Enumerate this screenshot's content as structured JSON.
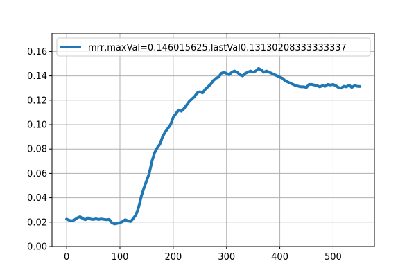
{
  "chart_data": {
    "type": "line",
    "title": "",
    "xlabel": "",
    "ylabel": "",
    "xlim": [
      -27.5,
      577.5
    ],
    "ylim": [
      0.0,
      0.175
    ],
    "x_ticks": [
      0,
      100,
      200,
      300,
      400,
      500
    ],
    "x_tick_labels": [
      "0",
      "100",
      "200",
      "300",
      "400",
      "500"
    ],
    "y_ticks": [
      0.0,
      0.02,
      0.04,
      0.06,
      0.08,
      0.1,
      0.12,
      0.14,
      0.16
    ],
    "y_tick_labels": [
      "0.00",
      "0.02",
      "0.04",
      "0.06",
      "0.08",
      "0.10",
      "0.12",
      "0.14",
      "0.16"
    ],
    "grid": true,
    "legend_position": "top-left",
    "series": [
      {
        "name": "mrr,maxVal=0.146015625,lastVal0.13130208333333337",
        "color": "#1f77b4",
        "x": [
          0,
          5,
          10,
          15,
          20,
          25,
          30,
          35,
          40,
          45,
          50,
          55,
          60,
          65,
          70,
          75,
          80,
          85,
          90,
          95,
          100,
          105,
          110,
          115,
          120,
          125,
          130,
          135,
          140,
          145,
          150,
          155,
          160,
          165,
          170,
          175,
          180,
          185,
          190,
          195,
          200,
          205,
          210,
          215,
          220,
          225,
          230,
          235,
          240,
          245,
          250,
          255,
          260,
          265,
          270,
          275,
          280,
          285,
          290,
          295,
          300,
          305,
          310,
          315,
          320,
          325,
          330,
          335,
          340,
          345,
          350,
          355,
          360,
          365,
          370,
          375,
          380,
          385,
          390,
          395,
          400,
          405,
          410,
          415,
          420,
          425,
          430,
          435,
          440,
          445,
          450,
          455,
          460,
          465,
          470,
          475,
          480,
          485,
          490,
          495,
          500,
          505,
          510,
          515,
          520,
          525,
          530,
          535,
          540,
          545,
          550
        ],
        "y": [
          0.0225,
          0.0215,
          0.021,
          0.022,
          0.0235,
          0.0245,
          0.023,
          0.022,
          0.0235,
          0.0225,
          0.0222,
          0.0228,
          0.0222,
          0.0226,
          0.0223,
          0.022,
          0.0222,
          0.0195,
          0.0185,
          0.019,
          0.0195,
          0.0205,
          0.022,
          0.021,
          0.0205,
          0.023,
          0.026,
          0.032,
          0.041,
          0.048,
          0.054,
          0.06,
          0.07,
          0.077,
          0.081,
          0.084,
          0.09,
          0.094,
          0.097,
          0.1,
          0.106,
          0.109,
          0.112,
          0.111,
          0.113,
          0.116,
          0.119,
          0.121,
          0.123,
          0.126,
          0.127,
          0.126,
          0.129,
          0.131,
          0.133,
          0.136,
          0.138,
          0.139,
          0.142,
          0.143,
          0.142,
          0.141,
          0.143,
          0.144,
          0.143,
          0.141,
          0.14,
          0.142,
          0.143,
          0.144,
          0.143,
          0.144,
          0.146,
          0.145,
          0.143,
          0.144,
          0.143,
          0.142,
          0.141,
          0.14,
          0.139,
          0.138,
          0.136,
          0.135,
          0.134,
          0.133,
          0.132,
          0.1315,
          0.131,
          0.131,
          0.1305,
          0.133,
          0.133,
          0.1325,
          0.132,
          0.131,
          0.132,
          0.1315,
          0.133,
          0.1325,
          0.133,
          0.132,
          0.1305,
          0.13,
          0.1315,
          0.131,
          0.1325,
          0.1305,
          0.132,
          0.1315,
          0.1313
        ]
      }
    ]
  }
}
